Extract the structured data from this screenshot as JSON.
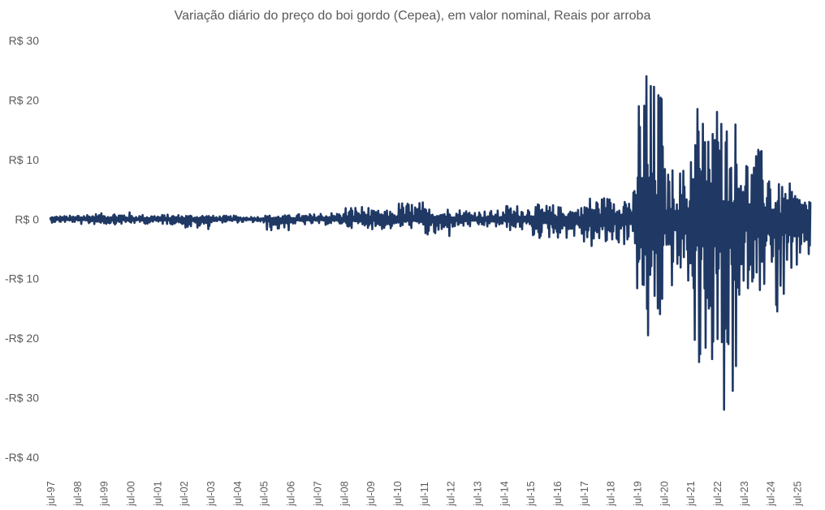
{
  "chart_data": {
    "type": "line",
    "title": "Variação diário do preço do boi gordo (Cepea), em valor nominal, Reais por arroba",
    "xlabel": "",
    "ylabel": "",
    "ylim": [
      -40,
      30
    ],
    "yticks": [
      30,
      20,
      10,
      0,
      -10,
      -20,
      -30,
      -40
    ],
    "ytick_labels": [
      "R$ 30",
      "R$ 20",
      "R$ 10",
      "R$ 0",
      "-R$ 10",
      "-R$ 20",
      "-R$ 30",
      "-R$ 40"
    ],
    "xticks": [
      "jul-97",
      "jul-98",
      "jul-99",
      "jul-00",
      "jul-01",
      "jul-02",
      "jul-03",
      "jul-04",
      "jul-05",
      "jul-06",
      "jul-07",
      "jul-08",
      "jul-09",
      "jul-10",
      "jul-11",
      "jul-12",
      "jul-13",
      "jul-14",
      "jul-15",
      "jul-16",
      "jul-17",
      "jul-18",
      "jul-19",
      "jul-20",
      "jul-21",
      "jul-22",
      "jul-23",
      "jul-24",
      "jul-25"
    ],
    "x_range": [
      "1997-07",
      "2026-01"
    ],
    "grid": false,
    "legend": "none",
    "color": "#1f3864",
    "series": [
      {
        "envelope_by_period": [
          {
            "period": "1997-07",
            "max": 0.6,
            "min": -0.6
          },
          {
            "period": "1998-07",
            "max": 1.0,
            "min": -0.9
          },
          {
            "period": "1999-07",
            "max": 1.2,
            "min": -0.9
          },
          {
            "period": "2000-07",
            "max": 0.8,
            "min": -0.8
          },
          {
            "period": "2001-07",
            "max": 0.8,
            "min": -0.9
          },
          {
            "period": "2002-07",
            "max": 0.8,
            "min": -1.7
          },
          {
            "period": "2003-07",
            "max": 0.6,
            "min": -0.6
          },
          {
            "period": "2004-07",
            "max": 0.5,
            "min": -0.6
          },
          {
            "period": "2005-07",
            "max": 0.7,
            "min": -2.0
          },
          {
            "period": "2006-07",
            "max": 0.9,
            "min": -1.0
          },
          {
            "period": "2007-07",
            "max": 1.2,
            "min": -1.0
          },
          {
            "period": "2008-07",
            "max": 2.3,
            "min": -1.5
          },
          {
            "period": "2009-07",
            "max": 1.5,
            "min": -1.8
          },
          {
            "period": "2010-07",
            "max": 3.0,
            "min": -1.6
          },
          {
            "period": "2011-07",
            "max": 2.0,
            "min": -3.2
          },
          {
            "period": "2012-07",
            "max": 1.8,
            "min": -1.5
          },
          {
            "period": "2013-07",
            "max": 1.5,
            "min": -1.5
          },
          {
            "period": "2014-07",
            "max": 2.5,
            "min": -2.0
          },
          {
            "period": "2015-07",
            "max": 2.5,
            "min": -3.4
          },
          {
            "period": "2016-07",
            "max": 2.2,
            "min": -3.3
          },
          {
            "period": "2017-07",
            "max": 4.0,
            "min": -5.0
          },
          {
            "period": "2018-07",
            "max": 5.0,
            "min": -4.5
          },
          {
            "period": "2019-07",
            "max": 24.0,
            "min": -19.5
          },
          {
            "period": "2020-07",
            "max": 9.0,
            "min": -12.0
          },
          {
            "period": "2021-07",
            "max": 18.5,
            "min": -24.0
          },
          {
            "period": "2022-07",
            "max": 18.0,
            "min": -32.0
          },
          {
            "period": "2023-07",
            "max": 12.0,
            "min": -12.0
          },
          {
            "period": "2024-07",
            "max": 6.0,
            "min": -15.5
          },
          {
            "period": "2025-07",
            "max": 4.5,
            "min": -7.0
          }
        ],
        "peaks": [
          {
            "date": "2019-11",
            "value": 24.0
          },
          {
            "date": "2019-12",
            "value": -19.5
          },
          {
            "date": "2021-10",
            "value": 18.5
          },
          {
            "date": "2022-03",
            "value": 13.0
          },
          {
            "date": "2022-07",
            "value": 18.0
          },
          {
            "date": "2022-09",
            "value": 16.0
          },
          {
            "date": "2021-11",
            "value": -24.0
          },
          {
            "date": "2022-05",
            "value": -23.5
          },
          {
            "date": "2022-10",
            "value": -32.0
          },
          {
            "date": "2024-10",
            "value": -15.5
          }
        ]
      }
    ]
  }
}
